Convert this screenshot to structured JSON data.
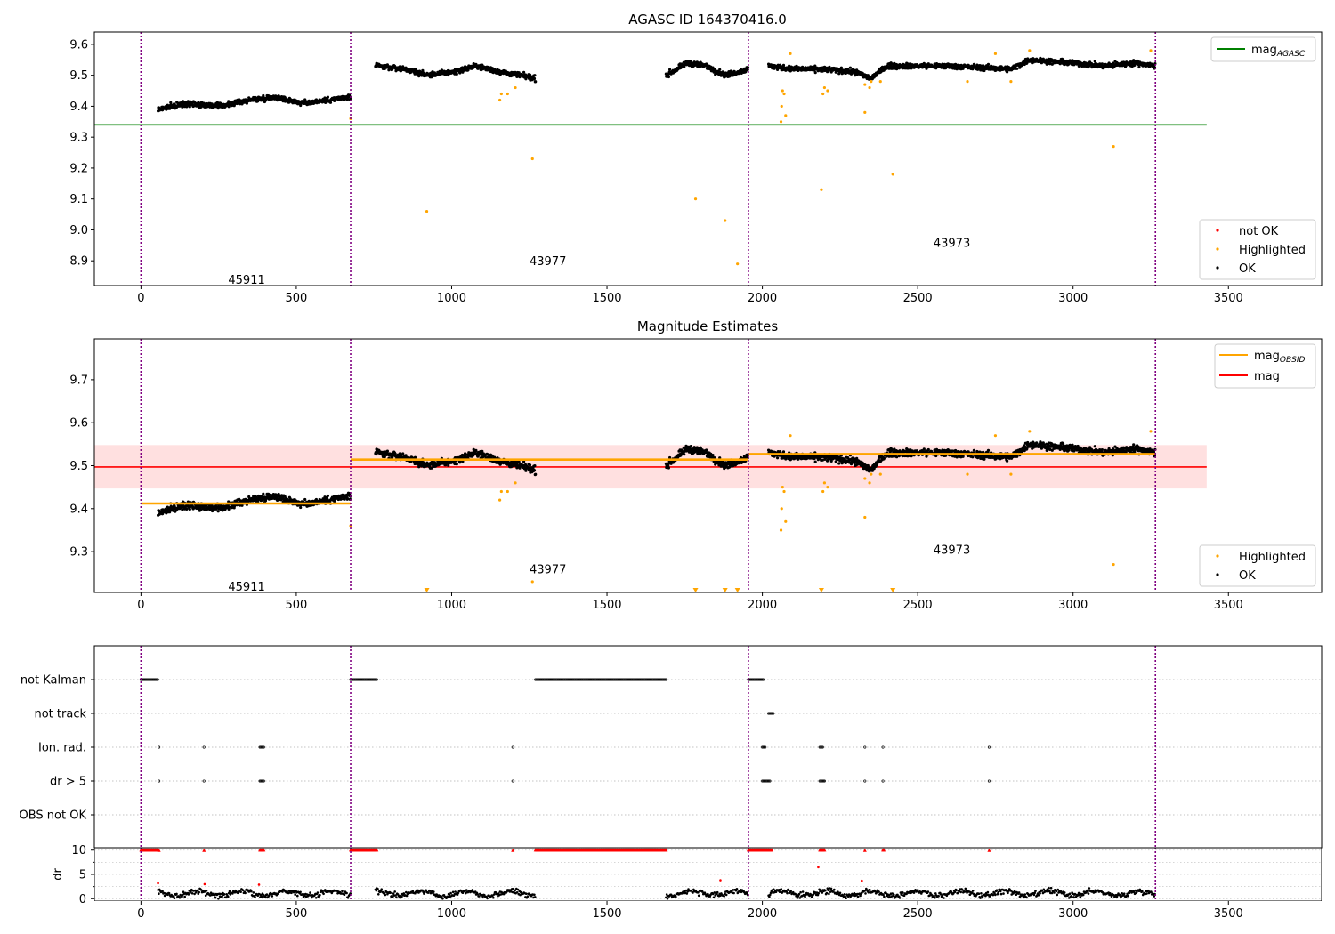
{
  "chart_data": [
    {
      "type": "scatter",
      "title": "AGASC ID 164370416.0",
      "xlabel": "",
      "ylabel": "",
      "xlim": [
        -150,
        3800
      ],
      "ylim": [
        8.82,
        9.64
      ],
      "xticks": [
        0,
        500,
        1000,
        1500,
        2000,
        2500,
        3000,
        3500
      ],
      "yticks": [
        8.9,
        9.0,
        9.1,
        9.2,
        9.3,
        9.4,
        9.5,
        9.6
      ],
      "grid": false,
      "colors": {
        "ok": "#000000",
        "highlighted": "#ffa500",
        "not_ok": "#ff0000",
        "mag_agasc": "#008000",
        "obs_boundary": "#800080"
      },
      "obs_boundaries": [
        0,
        675,
        1955,
        3265
      ],
      "obs_labels": [
        {
          "text": "45911",
          "x": 340,
          "y": 8.84
        },
        {
          "text": "43977",
          "x": 1310,
          "y": 8.9
        },
        {
          "text": "43973",
          "x": 2610,
          "y": 8.96
        }
      ],
      "hline": {
        "name": "mag_AGASC",
        "y": 9.34,
        "x": [
          -150,
          3430
        ]
      },
      "legend_line": {
        "main": "mag",
        "sub": "AGASC",
        "position": "upper right"
      },
      "legend_points": {
        "items": [
          "not OK",
          "Highlighted",
          "OK"
        ],
        "position": "lower right"
      },
      "ok_segments": [
        {
          "x0": 55,
          "x1": 675,
          "levels": [
            [
              55,
              9.39
            ],
            [
              150,
              9.41
            ],
            [
              250,
              9.4
            ],
            [
              350,
              9.42
            ],
            [
              430,
              9.43
            ],
            [
              520,
              9.41
            ],
            [
              600,
              9.42
            ],
            [
              675,
              9.43
            ]
          ]
        },
        {
          "x0": 755,
          "x1": 1270,
          "levels": [
            [
              755,
              9.53
            ],
            [
              850,
              9.52
            ],
            [
              920,
              9.5
            ],
            [
              1000,
              9.51
            ],
            [
              1080,
              9.53
            ],
            [
              1160,
              9.51
            ],
            [
              1270,
              9.49
            ]
          ]
        },
        {
          "x0": 1690,
          "x1": 1955,
          "levels": [
            [
              1690,
              9.5
            ],
            [
              1760,
              9.54
            ],
            [
              1820,
              9.53
            ],
            [
              1880,
              9.5
            ],
            [
              1955,
              9.52
            ]
          ]
        },
        {
          "x0": 2020,
          "x1": 3265,
          "levels": [
            [
              2020,
              9.53
            ],
            [
              2100,
              9.52
            ],
            [
              2200,
              9.52
            ],
            [
              2300,
              9.51
            ],
            [
              2350,
              9.49
            ],
            [
              2400,
              9.53
            ],
            [
              2600,
              9.53
            ],
            [
              2800,
              9.52
            ],
            [
              2860,
              9.55
            ],
            [
              3000,
              9.54
            ],
            [
              3100,
              9.53
            ],
            [
              3200,
              9.54
            ],
            [
              3265,
              9.53
            ]
          ]
        }
      ],
      "highlighted_points": [
        [
          675,
          9.36
        ],
        [
          920,
          9.06
        ],
        [
          1155,
          9.42
        ],
        [
          1160,
          9.44
        ],
        [
          1180,
          9.44
        ],
        [
          1205,
          9.46
        ],
        [
          1260,
          9.23
        ],
        [
          1785,
          9.1
        ],
        [
          1880,
          9.03
        ],
        [
          1920,
          8.89
        ],
        [
          2060,
          9.35
        ],
        [
          2062,
          9.4
        ],
        [
          2065,
          9.45
        ],
        [
          2070,
          9.44
        ],
        [
          2075,
          9.37
        ],
        [
          2090,
          9.57
        ],
        [
          2190,
          9.13
        ],
        [
          2195,
          9.44
        ],
        [
          2200,
          9.46
        ],
        [
          2210,
          9.45
        ],
        [
          2330,
          9.38
        ],
        [
          2330,
          9.47
        ],
        [
          2345,
          9.46
        ],
        [
          2350,
          9.48
        ],
        [
          2380,
          9.48
        ],
        [
          2420,
          9.18
        ],
        [
          2660,
          9.48
        ],
        [
          2750,
          9.57
        ],
        [
          2800,
          9.48
        ],
        [
          2860,
          9.58
        ],
        [
          3130,
          9.27
        ],
        [
          3250,
          9.58
        ]
      ]
    },
    {
      "type": "scatter",
      "title": "Magnitude Estimates",
      "xlabel": "",
      "ylabel": "",
      "xlim": [
        -150,
        3800
      ],
      "ylim": [
        9.205,
        9.795
      ],
      "xticks": [
        0,
        500,
        1000,
        1500,
        2000,
        2500,
        3000,
        3500
      ],
      "yticks": [
        9.3,
        9.4,
        9.5,
        9.6,
        9.7
      ],
      "grid": false,
      "colors": {
        "ok": "#000000",
        "highlighted": "#ffa500",
        "mag_obsid": "#ffa500",
        "mag": "#ff0000",
        "band": "#ffe0e0",
        "obs_boundary": "#800080"
      },
      "obs_boundaries": [
        0,
        675,
        1955,
        3265
      ],
      "obs_labels": [
        {
          "text": "45911",
          "x": 340,
          "y": 9.22
        },
        {
          "text": "43977",
          "x": 1310,
          "y": 9.26
        },
        {
          "text": "43973",
          "x": 2610,
          "y": 9.305
        }
      ],
      "mag_line": {
        "name": "mag",
        "y": 9.497,
        "x": [
          -150,
          3430
        ]
      },
      "mag_band": [
        9.447,
        9.548
      ],
      "mag_obsid_segments": [
        {
          "x0": 0,
          "x1": 675,
          "y": 9.412
        },
        {
          "x0": 675,
          "x1": 1955,
          "y": 9.514
        },
        {
          "x0": 1955,
          "x1": 3265,
          "y": 9.527
        }
      ],
      "legend_lines": {
        "items": [
          {
            "main": "mag",
            "sub": "OBSID"
          },
          {
            "main": "mag",
            "sub": ""
          }
        ],
        "position": "upper right"
      },
      "legend_points": {
        "items": [
          "Highlighted",
          "OK"
        ],
        "position": "lower right"
      },
      "out_of_range_markers_x": [
        920,
        1785,
        1880,
        1920,
        2190,
        2420
      ]
    },
    {
      "type": "scatter",
      "title": "",
      "xlim": [
        -150,
        3800
      ],
      "xticks": [
        0,
        500,
        1000,
        1500,
        2000,
        2500,
        3000,
        3500
      ],
      "categories": [
        "not Kalman",
        "not track",
        "Ion. rad.",
        "dr > 5",
        "OBS not OK"
      ],
      "flag_segments": {
        "not Kalman": [
          [
            0,
            55
          ],
          [
            675,
            760
          ],
          [
            1270,
            1690
          ],
          [
            1955,
            2005
          ]
        ],
        "not track": [
          [
            2020,
            2035
          ]
        ],
        "Ion. rad.": [
          [
            58,
            58
          ],
          [
            203,
            203
          ],
          [
            383,
            395
          ],
          [
            1197,
            1197
          ],
          [
            2000,
            2010
          ],
          [
            2185,
            2195
          ],
          [
            2330,
            2330
          ],
          [
            2388,
            2390
          ],
          [
            2730,
            2730
          ]
        ],
        "dr > 5": [
          [
            58,
            58
          ],
          [
            203,
            203
          ],
          [
            383,
            395
          ],
          [
            1197,
            1197
          ],
          [
            2000,
            2025
          ],
          [
            2185,
            2200
          ],
          [
            2330,
            2330
          ],
          [
            2388,
            2390
          ],
          [
            2730,
            2730
          ]
        ],
        "OBS not OK": []
      }
    },
    {
      "type": "scatter",
      "title": "",
      "xlabel": "",
      "ylabel": "dr",
      "xlim": [
        -150,
        3800
      ],
      "ylim": [
        -0.5,
        10.5
      ],
      "xticks": [
        0,
        500,
        1000,
        1500,
        2000,
        2500,
        3000,
        3500
      ],
      "yticks": [
        0,
        5,
        10
      ],
      "gridlines_y": [
        0,
        2.5,
        5,
        7.5,
        10
      ],
      "colors": {
        "ok": "#000000",
        "not_ok": "#ff0000"
      },
      "ok_segments": [
        [
          55,
          675
        ],
        [
          755,
          1270
        ],
        [
          1690,
          1955
        ],
        [
          2020,
          3265
        ]
      ],
      "clipped_red_segments": [
        [
          0,
          55
        ],
        [
          675,
          760
        ],
        [
          1270,
          1690
        ],
        [
          1955,
          2030
        ],
        [
          383,
          395
        ],
        [
          2185,
          2200
        ],
        [
          2388,
          2392
        ]
      ],
      "clipped_red_points_x": [
        58,
        203,
        1197,
        2330,
        2730
      ],
      "scattered_red_points": [
        [
          55,
          3.2
        ],
        [
          205,
          3.0
        ],
        [
          380,
          2.9
        ],
        [
          1865,
          3.8
        ],
        [
          2180,
          6.5
        ],
        [
          2320,
          3.7
        ]
      ]
    }
  ]
}
